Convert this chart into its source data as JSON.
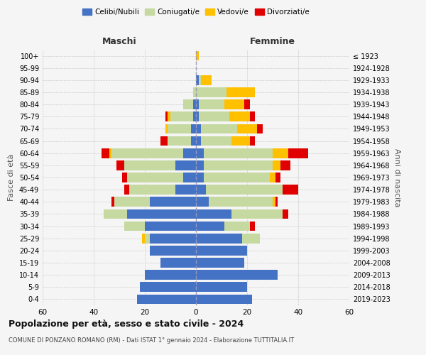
{
  "age_groups": [
    "0-4",
    "5-9",
    "10-14",
    "15-19",
    "20-24",
    "25-29",
    "30-34",
    "35-39",
    "40-44",
    "45-49",
    "50-54",
    "55-59",
    "60-64",
    "65-69",
    "70-74",
    "75-79",
    "80-84",
    "85-89",
    "90-94",
    "95-99",
    "100+"
  ],
  "birth_years": [
    "2019-2023",
    "2014-2018",
    "2009-2013",
    "2004-2008",
    "1999-2003",
    "1994-1998",
    "1989-1993",
    "1984-1988",
    "1979-1983",
    "1974-1978",
    "1969-1973",
    "1964-1968",
    "1959-1963",
    "1954-1958",
    "1949-1953",
    "1944-1948",
    "1939-1943",
    "1934-1938",
    "1929-1933",
    "1924-1928",
    "≤ 1923"
  ],
  "colors": {
    "celibi": "#4472c4",
    "coniugati": "#c5d9a0",
    "vedovi": "#ffc000",
    "divorziati": "#e00000"
  },
  "males": {
    "celibi": [
      23,
      22,
      20,
      14,
      18,
      18,
      20,
      27,
      18,
      8,
      5,
      8,
      5,
      2,
      2,
      1,
      1,
      0,
      0,
      0,
      0
    ],
    "coniugati": [
      0,
      0,
      0,
      0,
      0,
      2,
      8,
      9,
      14,
      18,
      22,
      20,
      28,
      9,
      9,
      9,
      4,
      1,
      0,
      0,
      0
    ],
    "vedovi": [
      0,
      0,
      0,
      0,
      0,
      1,
      0,
      0,
      0,
      0,
      0,
      0,
      1,
      0,
      1,
      1,
      0,
      0,
      0,
      0,
      0
    ],
    "divorziati": [
      0,
      0,
      0,
      0,
      0,
      0,
      0,
      0,
      1,
      2,
      2,
      3,
      3,
      3,
      0,
      1,
      0,
      0,
      0,
      0,
      0
    ]
  },
  "females": {
    "celibi": [
      22,
      20,
      32,
      19,
      20,
      18,
      11,
      14,
      5,
      4,
      3,
      3,
      3,
      2,
      2,
      1,
      1,
      0,
      1,
      0,
      0
    ],
    "coniugati": [
      0,
      0,
      0,
      0,
      0,
      7,
      10,
      20,
      25,
      30,
      26,
      27,
      27,
      12,
      14,
      12,
      10,
      12,
      1,
      0,
      0
    ],
    "vedovi": [
      0,
      0,
      0,
      0,
      0,
      0,
      0,
      0,
      1,
      0,
      2,
      3,
      6,
      7,
      8,
      8,
      8,
      11,
      4,
      0,
      1
    ],
    "divorziati": [
      0,
      0,
      0,
      0,
      0,
      0,
      2,
      2,
      1,
      6,
      2,
      4,
      8,
      2,
      2,
      2,
      2,
      0,
      0,
      0,
      0
    ]
  },
  "xlim": 60,
  "title": "Popolazione per età, sesso e stato civile - 2024",
  "subtitle": "COMUNE DI PONZANO ROMANO (RM) - Dati ISTAT 1° gennaio 2024 - Elaborazione TUTTITALIA.IT",
  "xlabel_left": "Maschi",
  "xlabel_right": "Femmine",
  "ylabel_left": "Fasce di età",
  "ylabel_right": "Anni di nascita",
  "bg_color": "#f5f5f5",
  "grid_color": "#cccccc"
}
